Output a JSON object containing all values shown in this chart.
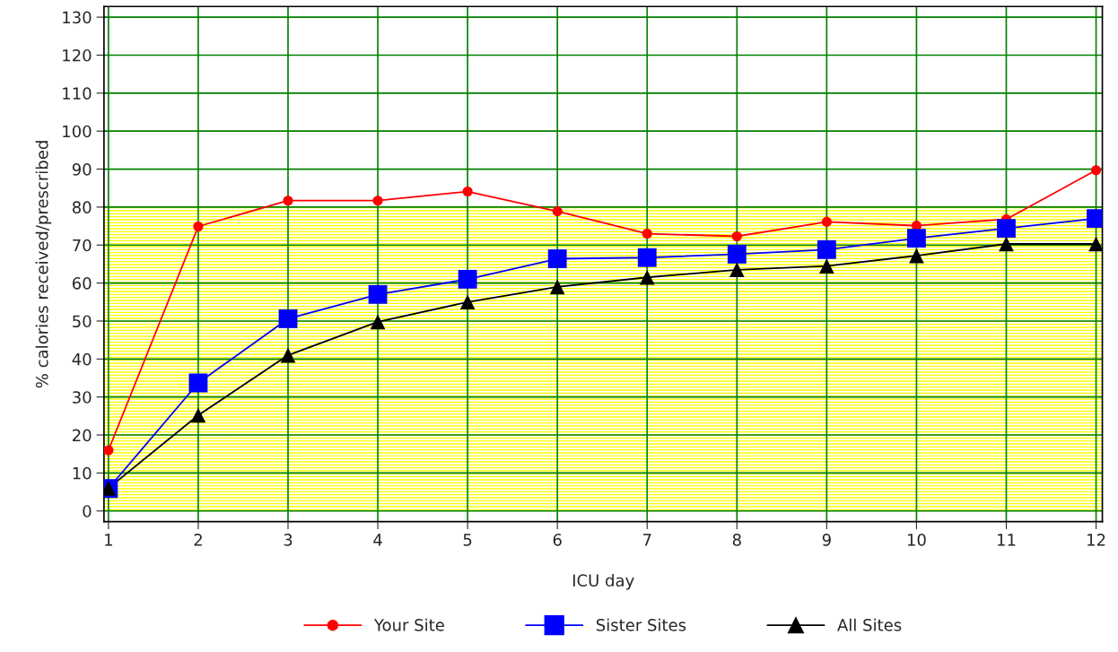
{
  "chart_data": {
    "type": "line",
    "xlabel": "ICU day",
    "ylabel": "% calories received/prescribed",
    "x": [
      1,
      2,
      3,
      4,
      5,
      6,
      7,
      8,
      9,
      10,
      11,
      12
    ],
    "series": [
      {
        "name": "Your Site",
        "color": "#ff0000",
        "marker": "circle",
        "values": [
          16.0,
          74.9,
          81.7,
          81.7,
          84.1,
          78.9,
          73.0,
          72.3,
          76.1,
          75.1,
          76.8,
          89.7
        ]
      },
      {
        "name": "Sister Sites",
        "color": "#0000ff",
        "marker": "square",
        "values": [
          5.9,
          33.7,
          50.6,
          57.0,
          61.0,
          66.4,
          66.7,
          67.6,
          68.8,
          71.8,
          74.4,
          77.0
        ]
      },
      {
        "name": "All Sites",
        "color": "#000000",
        "marker": "triangle",
        "values": [
          6.0,
          25.2,
          41.0,
          49.8,
          55.0,
          59.0,
          61.5,
          63.5,
          64.5,
          67.2,
          70.3,
          70.3
        ]
      }
    ],
    "xlim": [
      0.95,
      12.07
    ],
    "xticks": [
      1,
      2,
      3,
      4,
      5,
      6,
      7,
      8,
      9,
      10,
      11,
      12
    ],
    "ylim": [
      -2.8,
      132.8
    ],
    "yticks": [
      0,
      10,
      20,
      30,
      40,
      50,
      60,
      70,
      80,
      90,
      100,
      110,
      120,
      130
    ],
    "bands": [
      {
        "axis": "y",
        "from": 0,
        "to": 80,
        "color": "#ffff00"
      }
    ],
    "grid": true,
    "legend": "bottom",
    "line_style": "solid"
  }
}
